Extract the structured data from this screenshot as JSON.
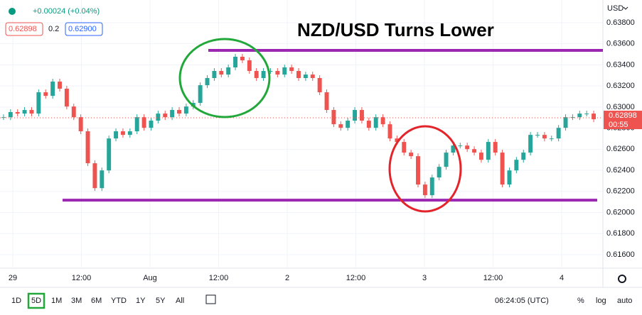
{
  "chart_data": {
    "type": "candles",
    "title": "NZD/USD Turns Lower",
    "change": "+0.00024 (+0.04%)",
    "bid": "0.62898",
    "spread": "0.2",
    "ask": "0.62900",
    "currency": "USD",
    "up_color": "#26a69a",
    "down_color": "#ef5350",
    "values": [
      0.62904,
      0.62952,
      0.62938,
      0.62972,
      0.62938,
      0.6314,
      0.63106,
      0.63241,
      0.63174,
      0.63005,
      0.62904,
      0.6277,
      0.62467,
      0.62231,
      0.62399,
      0.62702,
      0.6277,
      0.62736,
      0.6277,
      0.62904,
      0.62803,
      0.62871,
      0.62938,
      0.62904,
      0.62972,
      0.62938,
      0.63005,
      0.63039,
      0.63207,
      0.63275,
      0.63342,
      0.63308,
      0.63376,
      0.63477,
      0.63443,
      0.63342,
      0.63275,
      0.63342,
      0.63342,
      0.63308,
      0.63376,
      0.63342,
      0.63275,
      0.63308,
      0.63275,
      0.6314,
      0.62972,
      0.62837,
      0.62803,
      0.62871,
      0.62972,
      0.62871,
      0.62803,
      0.62904,
      0.62837,
      0.62702,
      0.62669,
      0.62568,
      0.62534,
      0.62265,
      0.62164,
      0.62332,
      0.62433,
      0.62568,
      0.62635,
      0.62635,
      0.62601,
      0.62568,
      0.625,
      0.62669,
      0.62568,
      0.62265,
      0.62399,
      0.625,
      0.62568,
      0.62736,
      0.62736,
      0.62702,
      0.62702,
      0.62803,
      0.62904,
      0.62904,
      0.62938,
      0.62938,
      0.62884
    ],
    "last": {
      "value": 0.62898,
      "label": "0.62898"
    },
    "countdown": "00:55",
    "levels": [
      0.63537,
      0.62117
    ],
    "ylim": [
      0.61472,
      0.64015
    ],
    "yticks": [
      {
        "value": 0.638,
        "label": "0.63800"
      },
      {
        "value": 0.636,
        "label": "0.63600"
      },
      {
        "value": 0.634,
        "label": "0.63400"
      },
      {
        "value": 0.632,
        "label": "0.63200"
      },
      {
        "value": 0.63,
        "label": "0.63000"
      },
      {
        "value": 0.628,
        "label": "0.62800"
      },
      {
        "value": 0.626,
        "label": "0.62600"
      },
      {
        "value": 0.624,
        "label": "0.62400"
      },
      {
        "value": 0.622,
        "label": "0.62200"
      },
      {
        "value": 0.62,
        "label": "0.62000"
      },
      {
        "value": 0.618,
        "label": "0.61800"
      },
      {
        "value": 0.616,
        "label": "0.61600"
      }
    ],
    "xticks": [
      "29",
      "12:00",
      "Aug",
      "12:00",
      "2",
      "12:00",
      "3",
      "12:00",
      "4"
    ],
    "ranges": [
      "1D",
      "5D",
      "1M",
      "3M",
      "6M",
      "YTD",
      "1Y",
      "5Y",
      "All"
    ],
    "active_range": "5D",
    "clock": "06:24:05 (UTC)",
    "scale_options": [
      "%",
      "log",
      "auto"
    ]
  }
}
